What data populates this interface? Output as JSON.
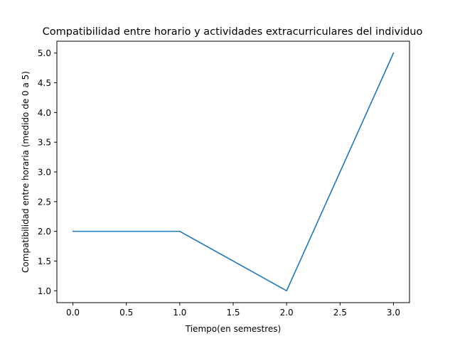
{
  "chart_data": {
    "type": "line",
    "title": "Compatibilidad entre horario y actividades extracurriculares del individuo",
    "xlabel": "Tiempo(en semestres)",
    "ylabel": "Compatibilidad entre horaria (medido de 0 a 5)",
    "x": [
      0,
      1,
      2,
      3
    ],
    "series": [
      {
        "values": [
          2,
          2,
          1,
          5
        ]
      }
    ],
    "xlim": [
      -0.15,
      3.15
    ],
    "ylim": [
      0.8,
      5.2
    ],
    "xticks": [
      "0.0",
      "0.5",
      "1.0",
      "1.5",
      "2.0",
      "2.5",
      "3.0"
    ],
    "yticks": [
      "1.0",
      "1.5",
      "2.0",
      "2.5",
      "3.0",
      "3.5",
      "4.0",
      "4.5",
      "5.0"
    ],
    "grid": false,
    "colors": {
      "line": "#1f77b4",
      "axes": "#000000"
    }
  }
}
